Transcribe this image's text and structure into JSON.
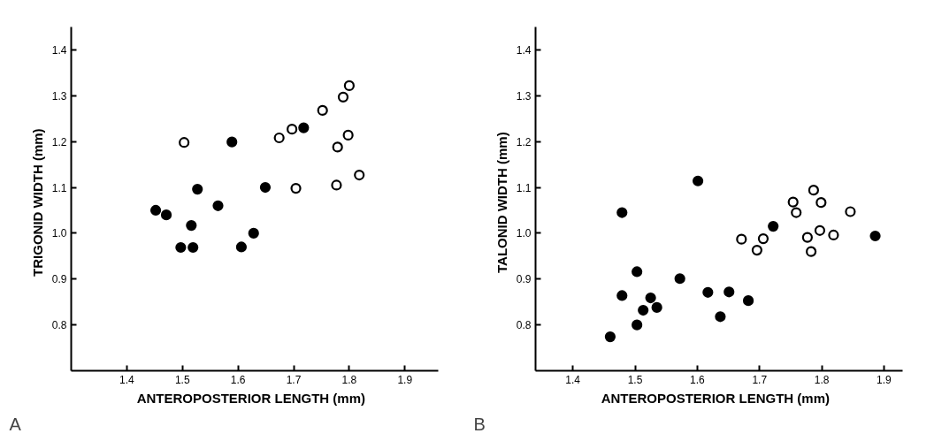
{
  "chart_data": [
    {
      "type": "scatter",
      "xlabel": "ANTEROPOSTERIOR   LENGTH (mm)",
      "ylabel": "TRIGONID   WIDTH (mm)",
      "annotations": [
        "A"
      ],
      "marker": "circle",
      "grid": false,
      "xlim": [
        1.3,
        1.96
      ],
      "xticks": [
        1.4,
        1.5,
        1.6,
        1.7,
        1.8,
        1.9
      ],
      "ylim": [
        0.7,
        1.45
      ],
      "yticks": [
        0.8,
        0.9,
        {
          "value": 1,
          "label": "1.0"
        },
        1.1,
        1.2,
        1.3,
        1.4
      ],
      "series": [
        {
          "color": "#000000",
          "x": [
            1.452,
            1.471,
            1.497,
            1.519,
            1.516,
            1.527,
            1.564,
            1.589,
            1.606,
            1.628,
            1.649,
            1.718
          ],
          "values": [
            1.05,
            1.04,
            0.969,
            0.969,
            1.017,
            1.096,
            1.06,
            1.199,
            0.97,
            1.0,
            1.1,
            1.23
          ]
        },
        {
          "color": "#ffffff",
          "x": [
            1.503,
            1.674,
            1.697,
            1.704,
            1.752,
            1.789,
            1.8,
            1.798,
            1.779,
            1.777,
            1.818
          ],
          "values": [
            1.198,
            1.208,
            1.227,
            1.098,
            1.268,
            1.297,
            1.322,
            1.214,
            1.188,
            1.105,
            1.127
          ]
        }
      ]
    },
    {
      "type": "scatter",
      "xlabel": "ANTEROPOSTERIOR   LENGTH (mm)",
      "ylabel": "TALONID   WIDTH (mm)",
      "annotations": [
        "B"
      ],
      "marker": "circle",
      "grid": false,
      "xlim": [
        1.34,
        1.93
      ],
      "xticks": [
        1.4,
        1.5,
        1.6,
        1.7,
        1.8,
        1.9
      ],
      "ylim": [
        0.7,
        1.45
      ],
      "yticks": [
        0.8,
        0.9,
        {
          "value": 1,
          "label": "1.0"
        },
        1.1,
        1.2,
        1.3,
        1.4
      ],
      "series": [
        {
          "color": "#000000",
          "x": [
            1.46,
            1.479,
            1.479,
            1.503,
            1.503,
            1.513,
            1.525,
            1.535,
            1.572,
            1.601,
            1.617,
            1.637,
            1.651,
            1.682,
            1.722,
            1.886
          ],
          "values": [
            0.774,
            1.045,
            0.864,
            0.916,
            0.8,
            0.832,
            0.859,
            0.838,
            0.901,
            1.114,
            0.871,
            0.818,
            0.872,
            0.853,
            1.015,
            0.994
          ]
        },
        {
          "color": "#ffffff",
          "x": [
            1.671,
            1.696,
            1.706,
            1.754,
            1.759,
            1.787,
            1.799,
            1.777,
            1.783,
            1.797,
            1.819,
            1.846
          ],
          "values": [
            0.987,
            0.963,
            0.988,
            1.068,
            1.045,
            1.094,
            1.067,
            0.991,
            0.96,
            1.006,
            0.996,
            1.047
          ]
        }
      ]
    }
  ]
}
